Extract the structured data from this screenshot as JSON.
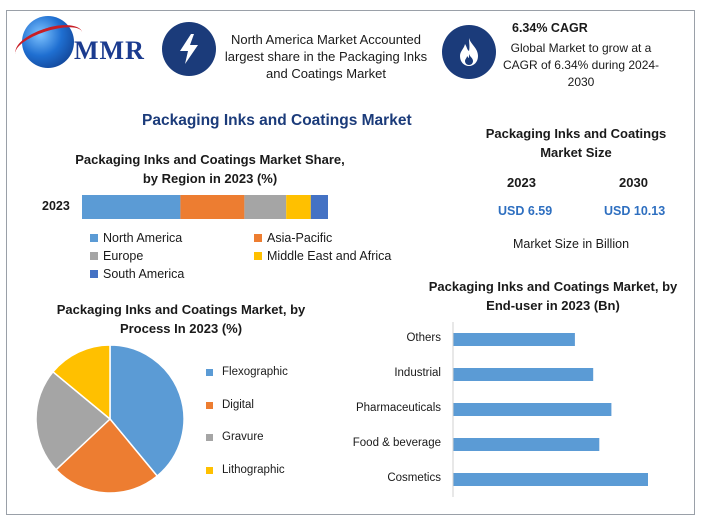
{
  "header": {
    "logo_text": "MMR",
    "info_text": "North America Market Accounted largest share in the Packaging Inks and Coatings Market",
    "cagr_title": "6.34% CAGR",
    "cagr_text": "Global Market to grow at a CAGR of 6.34% during 2024-2030",
    "icons": [
      "lightning-icon",
      "flame-icon"
    ]
  },
  "main_title": "Packaging Inks and Coatings Market",
  "market_size": {
    "title": "Packaging Inks and Coatings Market Size",
    "year_a": "2023",
    "year_b": "2030",
    "value_a": "USD 6.59",
    "value_b": "USD 10.13",
    "unit_note": "Market Size in Billion"
  },
  "colors": {
    "blue": "#5b9bd5",
    "orange": "#ed7d31",
    "gray": "#a5a5a5",
    "yellow": "#ffc000",
    "darkblue": "#4472c4",
    "navy": "#1b3b7a"
  },
  "chart_data": [
    {
      "type": "bar",
      "orientation": "horizontal-stacked",
      "title": "Packaging Inks and Coatings Market Share, by Region in 2023 (%)",
      "categories": [
        "2023"
      ],
      "series": [
        {
          "name": "North America",
          "values": [
            40
          ],
          "color": "#5b9bd5"
        },
        {
          "name": "Asia-Pacific",
          "values": [
            26
          ],
          "color": "#ed7d31"
        },
        {
          "name": "Europe",
          "values": [
            17
          ],
          "color": "#a5a5a5"
        },
        {
          "name": "Middle East and Africa",
          "values": [
            10
          ],
          "color": "#ffc000"
        },
        {
          "name": "South America",
          "values": [
            7
          ],
          "color": "#4472c4"
        }
      ],
      "legend": "bottom"
    },
    {
      "type": "pie",
      "title": "Packaging Inks and Coatings Market, by Process In 2023 (%)",
      "labels": [
        "Flexographic",
        "Digital",
        "Gravure",
        "Lithographic"
      ],
      "values": [
        39,
        24,
        23,
        14
      ],
      "colors": [
        "#5b9bd5",
        "#ed7d31",
        "#a5a5a5",
        "#ffc000"
      ],
      "legend": "right"
    },
    {
      "type": "bar",
      "orientation": "horizontal",
      "title": "Packaging Inks and Coatings Market, by End-user in 2023 (Bn)",
      "categories": [
        "Others",
        "Industrial",
        "Pharmaceuticals",
        "Food & beverage",
        "Cosmetics"
      ],
      "values": [
        1.0,
        1.15,
        1.3,
        1.2,
        1.6
      ],
      "xlim": [
        0,
        2.4
      ],
      "color": "#5b9bd5",
      "grid": false
    }
  ]
}
